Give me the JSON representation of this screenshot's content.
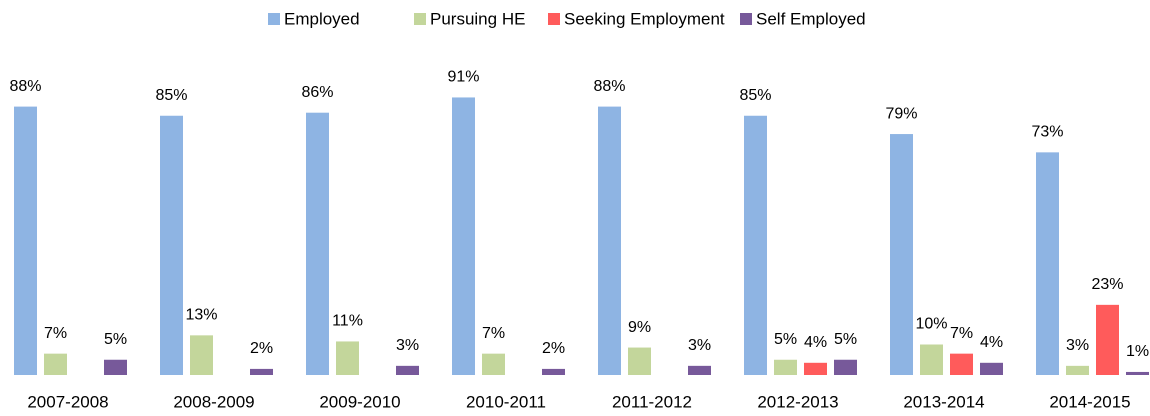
{
  "chart_data": {
    "type": "bar",
    "categories": [
      "2007-2008",
      "2008-2009",
      "2009-2010",
      "2010-2011",
      "2011-2012",
      "2012-2013",
      "2013-2014",
      "2014-2015"
    ],
    "series": [
      {
        "name": "Employed",
        "color": "#8eb4e3",
        "values": [
          88,
          85,
          86,
          91,
          88,
          85,
          79,
          73
        ],
        "value_labels": [
          "88%",
          "85%",
          "86%",
          "91%",
          "88%",
          "85%",
          "79%",
          "73%"
        ]
      },
      {
        "name": "Pursuing HE",
        "color": "#c3d69b",
        "values": [
          7,
          13,
          11,
          7,
          9,
          5,
          10,
          3
        ],
        "value_labels": [
          "7%",
          "13%",
          "11%",
          "7%",
          "9%",
          "5%",
          "10%",
          "3%"
        ]
      },
      {
        "name": "Seeking Employment",
        "color": "#ff5b5b",
        "values": [
          null,
          null,
          null,
          null,
          null,
          4,
          7,
          23
        ],
        "value_labels": [
          null,
          null,
          null,
          null,
          null,
          "4%",
          "7%",
          "23%"
        ]
      },
      {
        "name": "Self Employed",
        "color": "#77599a",
        "values": [
          5,
          2,
          3,
          2,
          3,
          5,
          4,
          1
        ],
        "value_labels": [
          "5%",
          "2%",
          "3%",
          "2%",
          "3%",
          "5%",
          "4%",
          "1%"
        ]
      }
    ],
    "ylim": [
      0,
      100
    ],
    "legend": "top"
  }
}
